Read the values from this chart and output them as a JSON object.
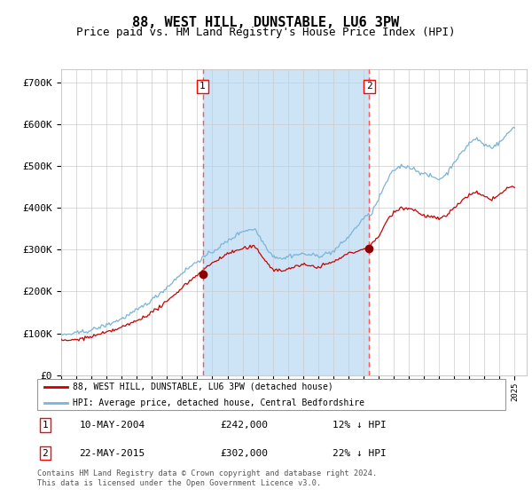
{
  "title": "88, WEST HILL, DUNSTABLE, LU6 3PW",
  "subtitle": "Price paid vs. HM Land Registry's House Price Index (HPI)",
  "title_fontsize": 11,
  "subtitle_fontsize": 9,
  "background_color": "#ffffff",
  "plot_bg_color": "#ffffff",
  "shaded_region_color": "#cce4f5",
  "grid_color": "#cccccc",
  "hpi_line_color": "#7ab4d8",
  "price_line_color": "#cc0000",
  "marker_color": "#8b0000",
  "vline_color": "#ff5555",
  "ylim": [
    0,
    730000
  ],
  "yticks": [
    0,
    100000,
    200000,
    300000,
    400000,
    500000,
    600000,
    700000
  ],
  "ytick_labels": [
    "£0",
    "£100K",
    "£200K",
    "£300K",
    "£400K",
    "£500K",
    "£600K",
    "£700K"
  ],
  "xstart_year": 1995,
  "xend_year": 2025,
  "sale1_year": 2004.36,
  "sale1_price": 242000,
  "sale1_label": "1",
  "sale1_date": "10-MAY-2004",
  "sale1_hpi_pct": "12% ↓ HPI",
  "sale2_year": 2015.38,
  "sale2_price": 302000,
  "sale2_label": "2",
  "sale2_date": "22-MAY-2015",
  "sale2_hpi_pct": "22% ↓ HPI",
  "legend_line1": "88, WEST HILL, DUNSTABLE, LU6 3PW (detached house)",
  "legend_line2": "HPI: Average price, detached house, Central Bedfordshire",
  "footer1": "Contains HM Land Registry data © Crown copyright and database right 2024.",
  "footer2": "This data is licensed under the Open Government Licence v3.0.",
  "hpi_anchors_y": [
    1995,
    1996,
    1997,
    1998,
    1999,
    2000,
    2001,
    2002,
    2003,
    2004,
    2005,
    2006,
    2007,
    2007.8,
    2008.5,
    2009,
    2009.8,
    2010,
    2011,
    2012,
    2013,
    2014,
    2015,
    2015.5,
    2016,
    2016.5,
    2017,
    2017.5,
    2018,
    2018.5,
    2019,
    2019.5,
    2020,
    2020.5,
    2021,
    2021.5,
    2022,
    2022.5,
    2023,
    2023.5,
    2024,
    2024.5,
    2025
  ],
  "hpi_anchors_v": [
    96000,
    100000,
    108000,
    120000,
    135000,
    155000,
    180000,
    210000,
    245000,
    272000,
    295000,
    320000,
    345000,
    350000,
    310000,
    285000,
    278000,
    285000,
    290000,
    285000,
    295000,
    330000,
    375000,
    385000,
    420000,
    460000,
    490000,
    500000,
    498000,
    490000,
    480000,
    475000,
    468000,
    480000,
    510000,
    530000,
    555000,
    565000,
    550000,
    545000,
    555000,
    575000,
    595000
  ],
  "price_anchors_y": [
    1995,
    1996,
    1997,
    1998,
    1999,
    2000,
    2001,
    2002,
    2003,
    2004,
    2005,
    2006,
    2007,
    2007.8,
    2008.5,
    2009,
    2009.8,
    2010,
    2011,
    2012,
    2013,
    2014,
    2015,
    2015.5,
    2016,
    2016.5,
    2017,
    2017.5,
    2018,
    2018.5,
    2019,
    2019.5,
    2020,
    2020.5,
    2021,
    2021.5,
    2022,
    2022.5,
    2023,
    2023.5,
    2024,
    2024.5,
    2025
  ],
  "price_anchors_v": [
    82000,
    85000,
    92000,
    102000,
    114000,
    130000,
    150000,
    175000,
    210000,
    240000,
    268000,
    290000,
    302000,
    307000,
    275000,
    252000,
    248000,
    255000,
    263000,
    258000,
    270000,
    290000,
    300000,
    310000,
    330000,
    365000,
    390000,
    400000,
    398000,
    392000,
    380000,
    378000,
    372000,
    380000,
    400000,
    415000,
    430000,
    435000,
    425000,
    420000,
    430000,
    445000,
    450000
  ]
}
